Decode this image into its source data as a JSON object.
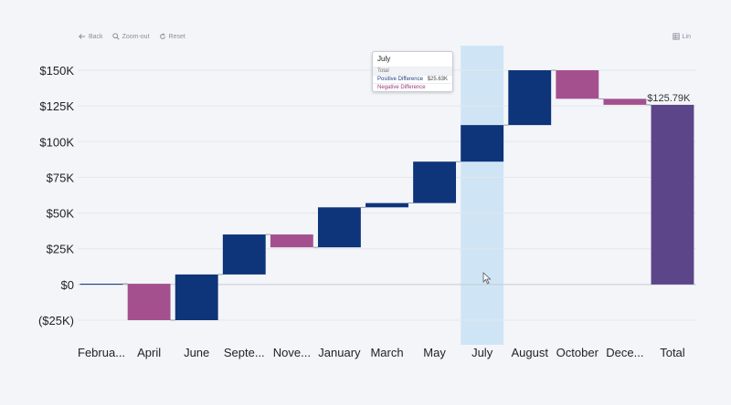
{
  "toolbar": {
    "back": "Back",
    "zoom_out": "Zoom-out",
    "reset": "Reset",
    "scale": "Lin"
  },
  "tooltip": {
    "title": "July",
    "rows": [
      {
        "label": "Total",
        "value": ""
      },
      {
        "label": "Positive Difference",
        "value": "$25.63K"
      },
      {
        "label": "Negative Difference",
        "value": ""
      }
    ]
  },
  "colors": {
    "increase": "#0e347a",
    "decrease": "#a4508f",
    "total": "#5c4589",
    "highlight": "#cfe5f5",
    "axis_text": "#222222"
  },
  "chart_data": {
    "type": "waterfall",
    "title": "",
    "xlabel": "",
    "ylabel": "",
    "ylim": [
      -25,
      150
    ],
    "yticks": [
      {
        "value": -25,
        "label": "($25K)"
      },
      {
        "value": 0,
        "label": "$0"
      },
      {
        "value": 25,
        "label": "$25K"
      },
      {
        "value": 50,
        "label": "$50K"
      },
      {
        "value": 75,
        "label": "$75K"
      },
      {
        "value": 100,
        "label": "$100K"
      },
      {
        "value": 125,
        "label": "$125K"
      },
      {
        "value": 150,
        "label": "$150K"
      }
    ],
    "units": "thousands of dollars",
    "highlighted_category": "July",
    "bars": [
      {
        "label": "Februa...",
        "start": 0,
        "end": 0.5,
        "kind": "delta"
      },
      {
        "label": "April",
        "start": 0.5,
        "end": -25,
        "kind": "delta"
      },
      {
        "label": "June",
        "start": -25,
        "end": 7,
        "kind": "delta"
      },
      {
        "label": "Septe...",
        "start": 7,
        "end": 35,
        "kind": "delta"
      },
      {
        "label": "Nove...",
        "start": 35,
        "end": 26,
        "kind": "delta"
      },
      {
        "label": "January",
        "start": 26,
        "end": 54,
        "kind": "delta"
      },
      {
        "label": "March",
        "start": 54,
        "end": 57,
        "kind": "delta"
      },
      {
        "label": "May",
        "start": 57,
        "end": 86,
        "kind": "delta"
      },
      {
        "label": "July",
        "start": 86,
        "end": 111.6,
        "kind": "delta"
      },
      {
        "label": "August",
        "start": 111.6,
        "end": 150,
        "kind": "delta"
      },
      {
        "label": "October",
        "start": 150,
        "end": 130,
        "kind": "delta"
      },
      {
        "label": "Dece...",
        "start": 130,
        "end": 125.8,
        "kind": "delta"
      },
      {
        "label": "Total",
        "start": 0,
        "end": 125.79,
        "kind": "total"
      }
    ],
    "total_label": "$125.79K",
    "grid": true
  }
}
